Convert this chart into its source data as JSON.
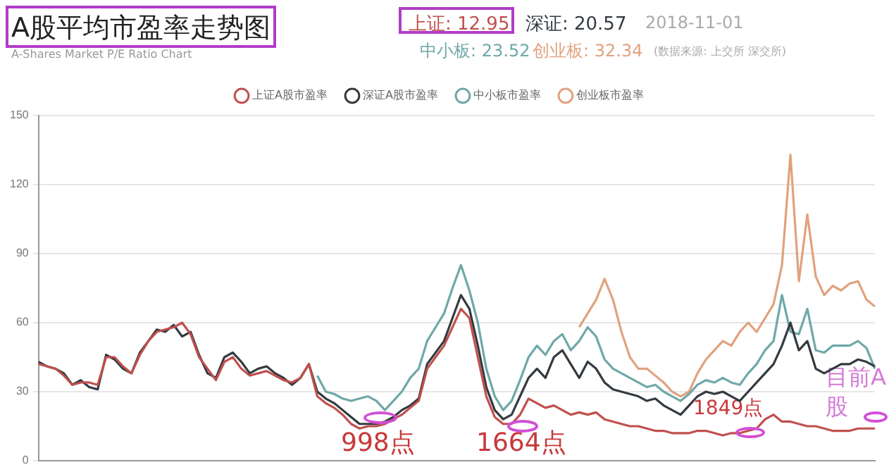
{
  "chart_data": {
    "type": "line",
    "title": "A股平均市盈率走势图",
    "subtitle": "A-Shares Market P/E Ratio Chart",
    "annotations": [
      "上证: 12.95",
      "深证: 20.57",
      "中小板: 23.52",
      "创业板: 32.34",
      "2018-11-01",
      "(数据来源: 上交所 深交所)",
      "998点",
      "1664点",
      "1849点",
      "目前A股"
    ],
    "categories": [
      null,
      null,
      null,
      null,
      null,
      null,
      null,
      null,
      null,
      null,
      null,
      null,
      null,
      null,
      null,
      null,
      null,
      null,
      null,
      null,
      null,
      null,
      null,
      null,
      null,
      null,
      null,
      null,
      null,
      null,
      null,
      null,
      null,
      null,
      null,
      null,
      null,
      null,
      null,
      null,
      null,
      null,
      null,
      null,
      null,
      null,
      null,
      null,
      null,
      null,
      null,
      null,
      null,
      null,
      null,
      null,
      null,
      null,
      null,
      null,
      null,
      null,
      null,
      null,
      null,
      null,
      null,
      null,
      null,
      null,
      null,
      null,
      null,
      null,
      null,
      null,
      null,
      null,
      null,
      null,
      null,
      null,
      null,
      null,
      null,
      null,
      null,
      null,
      null,
      null,
      null,
      null,
      null,
      null,
      null,
      null,
      null,
      null,
      null,
      null
    ],
    "series": [
      {
        "name": "上证A股市盈率",
        "color": "#c0504d",
        "values": [
          42,
          41,
          40,
          37,
          33,
          34,
          34,
          33,
          45,
          45,
          41,
          38,
          46,
          52,
          56,
          57,
          58,
          60,
          55,
          45,
          40,
          35,
          43,
          45,
          40,
          37,
          38,
          39,
          37,
          35,
          34,
          36,
          42,
          28,
          25,
          23,
          20,
          16,
          14,
          15,
          15,
          16,
          18,
          20,
          23,
          26,
          40,
          45,
          50,
          58,
          66,
          62,
          45,
          28,
          19,
          16,
          16,
          20,
          27,
          25,
          23,
          24,
          22,
          20,
          21,
          20,
          21,
          18,
          17,
          16,
          15,
          15,
          14,
          13,
          13,
          12,
          12,
          12,
          13,
          13,
          12,
          11,
          12,
          12,
          13,
          14,
          18,
          20,
          17,
          17,
          16,
          15,
          15,
          14,
          13,
          13,
          13,
          14,
          14,
          14
        ]
      },
      {
        "name": "深证A股市盈率",
        "color": "#333a40",
        "values": [
          43,
          41,
          40,
          38,
          33,
          35,
          32,
          31,
          46,
          44,
          40,
          38,
          47,
          52,
          57,
          56,
          59,
          54,
          56,
          46,
          38,
          36,
          45,
          47,
          43,
          38,
          40,
          41,
          38,
          36,
          33,
          36,
          42,
          30,
          27,
          25,
          22,
          19,
          16,
          16,
          16,
          17,
          19,
          22,
          24,
          27,
          42,
          47,
          52,
          62,
          72,
          66,
          50,
          32,
          22,
          18,
          20,
          28,
          36,
          40,
          36,
          45,
          48,
          42,
          36,
          43,
          40,
          34,
          31,
          30,
          29,
          28,
          26,
          27,
          24,
          22,
          20,
          24,
          28,
          30,
          29,
          30,
          28,
          26,
          30,
          34,
          38,
          42,
          50,
          60,
          48,
          52,
          40,
          38,
          40,
          42,
          42,
          44,
          43,
          41
        ]
      },
      {
        "name": "中小板市盈率",
        "color": "#6fa8a8",
        "values": [
          null,
          null,
          null,
          null,
          null,
          null,
          null,
          null,
          null,
          null,
          null,
          null,
          null,
          null,
          null,
          null,
          null,
          null,
          null,
          null,
          null,
          null,
          null,
          null,
          null,
          null,
          null,
          null,
          null,
          null,
          null,
          null,
          null,
          37,
          30,
          29,
          27,
          26,
          27,
          28,
          26,
          22,
          26,
          30,
          36,
          40,
          52,
          58,
          64,
          75,
          85,
          74,
          60,
          40,
          28,
          22,
          26,
          35,
          45,
          50,
          46,
          52,
          55,
          48,
          52,
          58,
          54,
          44,
          40,
          38,
          36,
          34,
          32,
          33,
          30,
          28,
          26,
          29,
          33,
          35,
          34,
          36,
          34,
          33,
          38,
          42,
          48,
          52,
          72,
          56,
          55,
          66,
          48,
          47,
          50,
          50,
          50,
          52,
          49,
          40
        ]
      },
      {
        "name": "创业板市盈率",
        "color": "#e0a27e",
        "values": [
          null,
          null,
          null,
          null,
          null,
          null,
          null,
          null,
          null,
          null,
          null,
          null,
          null,
          null,
          null,
          null,
          null,
          null,
          null,
          null,
          null,
          null,
          null,
          null,
          null,
          null,
          null,
          null,
          null,
          null,
          null,
          null,
          null,
          null,
          null,
          null,
          null,
          null,
          null,
          null,
          null,
          null,
          null,
          null,
          null,
          null,
          null,
          null,
          null,
          null,
          null,
          null,
          null,
          null,
          null,
          null,
          null,
          null,
          null,
          null,
          null,
          null,
          null,
          null,
          58,
          64,
          70,
          79,
          70,
          56,
          45,
          40,
          40,
          37,
          34,
          30,
          28,
          30,
          38,
          44,
          48,
          52,
          50,
          56,
          60,
          56,
          62,
          68,
          85,
          133,
          78,
          107,
          80,
          72,
          76,
          74,
          77,
          78,
          70,
          67
        ]
      }
    ],
    "ylim": [
      0,
      150
    ],
    "yticks": [
      0,
      30,
      60,
      90,
      120,
      150
    ],
    "grid": "y",
    "legend": "top",
    "marker": "none",
    "line_style": "solid"
  }
}
